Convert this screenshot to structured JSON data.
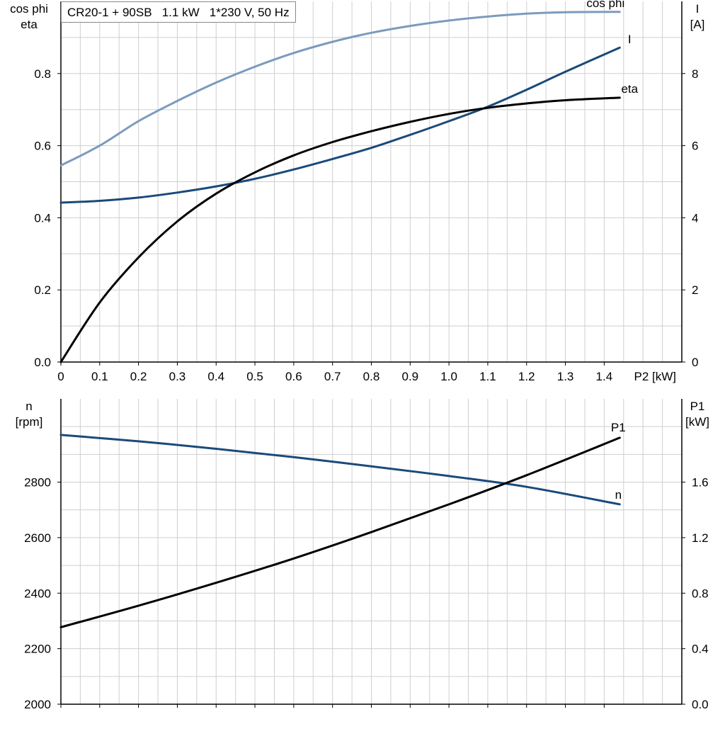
{
  "chart_data": [
    {
      "type": "line",
      "title": "CR20-1 + 90SB   1.1 kW   1*230 V, 50 Hz",
      "xlabel": "P2 [kW]",
      "xlim": [
        0,
        1.6
      ],
      "xticks": [
        0,
        0.1,
        0.2,
        0.3,
        0.4,
        0.5,
        0.6,
        0.7,
        0.8,
        0.9,
        1.0,
        1.1,
        1.2,
        1.3,
        1.4
      ],
      "xtick_labels": [
        "0",
        "0.1",
        "0.2",
        "0.3",
        "0.4",
        "0.5",
        "0.6",
        "0.7",
        "0.8",
        "0.9",
        "1.0",
        "1.1",
        "1.2",
        "1.3",
        "1.4"
      ],
      "ylabel_left": [
        "cos phi",
        "eta"
      ],
      "ylim_left": [
        0,
        1.0
      ],
      "yticks_left": [
        0.0,
        0.2,
        0.4,
        0.6,
        0.8
      ],
      "ytick_labels_left": [
        "0.0",
        "0.2",
        "0.4",
        "0.6",
        "0.8"
      ],
      "ylabel_right": [
        "I",
        "[A]"
      ],
      "ylim_right": [
        0,
        10
      ],
      "yticks_right": [
        0,
        2,
        4,
        6,
        8
      ],
      "ytick_labels_right": [
        "0",
        "2",
        "4",
        "6",
        "8"
      ],
      "grid": true,
      "series": [
        {
          "name": "cos phi",
          "axis": "left",
          "color": "#7b9bbd",
          "x": [
            0,
            0.1,
            0.2,
            0.3,
            0.4,
            0.5,
            0.6,
            0.7,
            0.8,
            0.9,
            1.0,
            1.1,
            1.2,
            1.3,
            1.44
          ],
          "y": [
            0.545,
            0.6,
            0.668,
            0.724,
            0.775,
            0.819,
            0.857,
            0.888,
            0.913,
            0.932,
            0.947,
            0.958,
            0.966,
            0.97,
            0.971
          ]
        },
        {
          "name": "I",
          "axis": "right",
          "color": "#1a4a7a",
          "x": [
            0,
            0.1,
            0.2,
            0.3,
            0.4,
            0.5,
            0.6,
            0.7,
            0.8,
            0.9,
            1.0,
            1.1,
            1.2,
            1.3,
            1.44
          ],
          "y": [
            4.42,
            4.47,
            4.56,
            4.7,
            4.87,
            5.08,
            5.34,
            5.63,
            5.94,
            6.3,
            6.68,
            7.08,
            7.55,
            8.05,
            8.72
          ]
        },
        {
          "name": "eta",
          "axis": "left",
          "color": "#000000",
          "x": [
            0,
            0.1,
            0.2,
            0.3,
            0.4,
            0.5,
            0.6,
            0.7,
            0.8,
            0.9,
            1.0,
            1.1,
            1.2,
            1.3,
            1.44
          ],
          "y": [
            0.0,
            0.165,
            0.29,
            0.39,
            0.467,
            0.526,
            0.573,
            0.61,
            0.64,
            0.666,
            0.688,
            0.705,
            0.717,
            0.726,
            0.733
          ]
        }
      ]
    },
    {
      "type": "line",
      "xlim": [
        0,
        1.6
      ],
      "xticks": [
        0,
        0.1,
        0.2,
        0.3,
        0.4,
        0.5,
        0.6,
        0.7,
        0.8,
        0.9,
        1.0,
        1.1,
        1.2,
        1.3,
        1.4
      ],
      "ylabel_left": [
        "n",
        "[rpm]"
      ],
      "ylim_left": [
        2000,
        3100
      ],
      "yticks_left": [
        2000,
        2200,
        2400,
        2600,
        2800
      ],
      "ytick_labels_left": [
        "2000",
        "2200",
        "2400",
        "2600",
        "2800"
      ],
      "ylabel_right": [
        "P1",
        "[kW]"
      ],
      "ylim_right": [
        0.0,
        2.2
      ],
      "yticks_right": [
        0.0,
        0.4,
        0.8,
        1.2,
        1.6
      ],
      "ytick_labels_right": [
        "0.0",
        "0.4",
        "0.8",
        "1.2",
        "1.6"
      ],
      "grid": true,
      "series": [
        {
          "name": "n",
          "axis": "left",
          "color": "#1a4a7a",
          "x": [
            0,
            0.2,
            0.4,
            0.6,
            0.8,
            1.0,
            1.2,
            1.44
          ],
          "y": [
            2970,
            2947,
            2920,
            2890,
            2857,
            2822,
            2783,
            2720
          ]
        },
        {
          "name": "P1",
          "axis": "right",
          "color": "#000000",
          "x": [
            0,
            0.2,
            0.4,
            0.6,
            0.8,
            1.0,
            1.2,
            1.44
          ],
          "y": [
            0.555,
            0.71,
            0.875,
            1.05,
            1.24,
            1.44,
            1.65,
            1.92
          ]
        }
      ]
    }
  ]
}
